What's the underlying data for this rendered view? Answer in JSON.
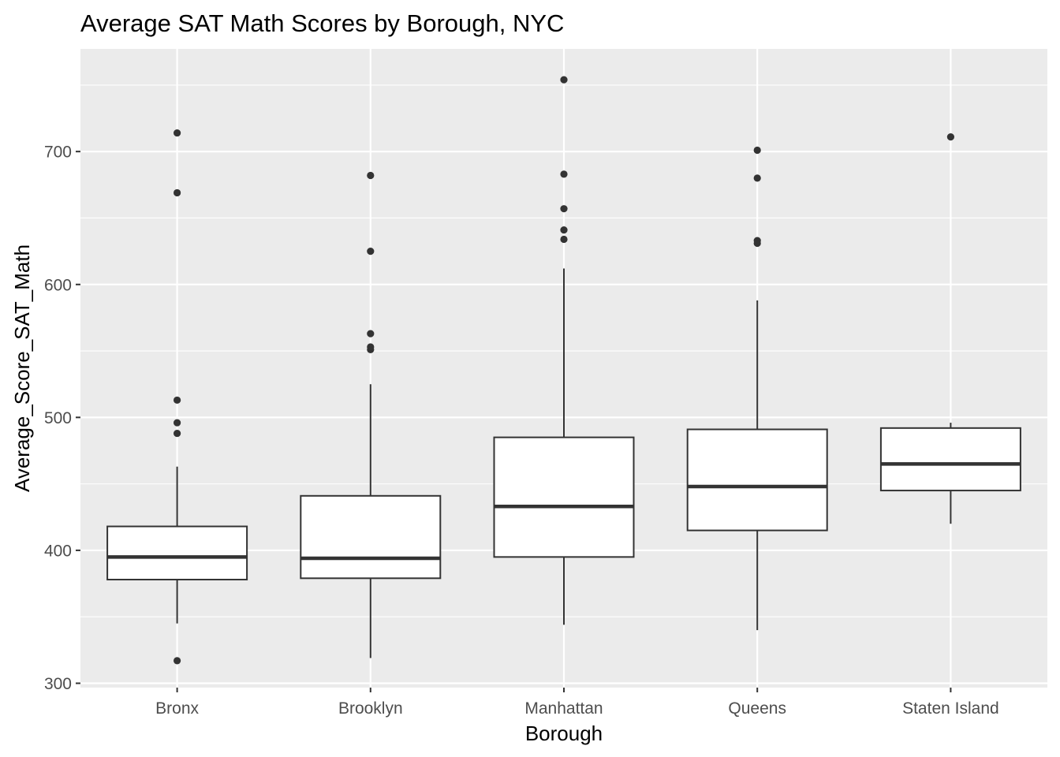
{
  "chart_data": {
    "type": "boxplot",
    "title": "Average SAT Math Scores by Borough, NYC",
    "xlabel": "Borough",
    "ylabel": "Average_Score_SAT_Math",
    "ylim": [
      295,
      775
    ],
    "yticks": [
      300,
      400,
      500,
      600,
      700
    ],
    "grid": true,
    "categories": [
      "Bronx",
      "Brooklyn",
      "Manhattan",
      "Queens",
      "Staten Island"
    ],
    "boxes": [
      {
        "category": "Bronx",
        "whisker_low": 345,
        "q1": 378,
        "median": 395,
        "q3": 418,
        "whisker_high": 463,
        "outliers": [
          317,
          488,
          496,
          513,
          669,
          714
        ]
      },
      {
        "category": "Brooklyn",
        "whisker_low": 319,
        "q1": 379,
        "median": 394,
        "q3": 441,
        "whisker_high": 525,
        "outliers": [
          551,
          553,
          563,
          625,
          682
        ]
      },
      {
        "category": "Manhattan",
        "whisker_low": 344,
        "q1": 395,
        "median": 433,
        "q3": 485,
        "whisker_high": 612,
        "outliers": [
          634,
          641,
          657,
          683,
          754
        ]
      },
      {
        "category": "Queens",
        "whisker_low": 340,
        "q1": 415,
        "median": 448,
        "q3": 491,
        "whisker_high": 588,
        "outliers": [
          631,
          633,
          680,
          701
        ]
      },
      {
        "category": "Staten Island",
        "whisker_low": 420,
        "q1": 445,
        "median": 465,
        "q3": 492,
        "whisker_high": 496,
        "outliers": [
          711
        ]
      }
    ],
    "colors": {
      "panel_background": "#ebebeb",
      "grid": "#ffffff",
      "box_fill": "#ffffff",
      "box_line": "#333333",
      "point": "#333333"
    }
  }
}
